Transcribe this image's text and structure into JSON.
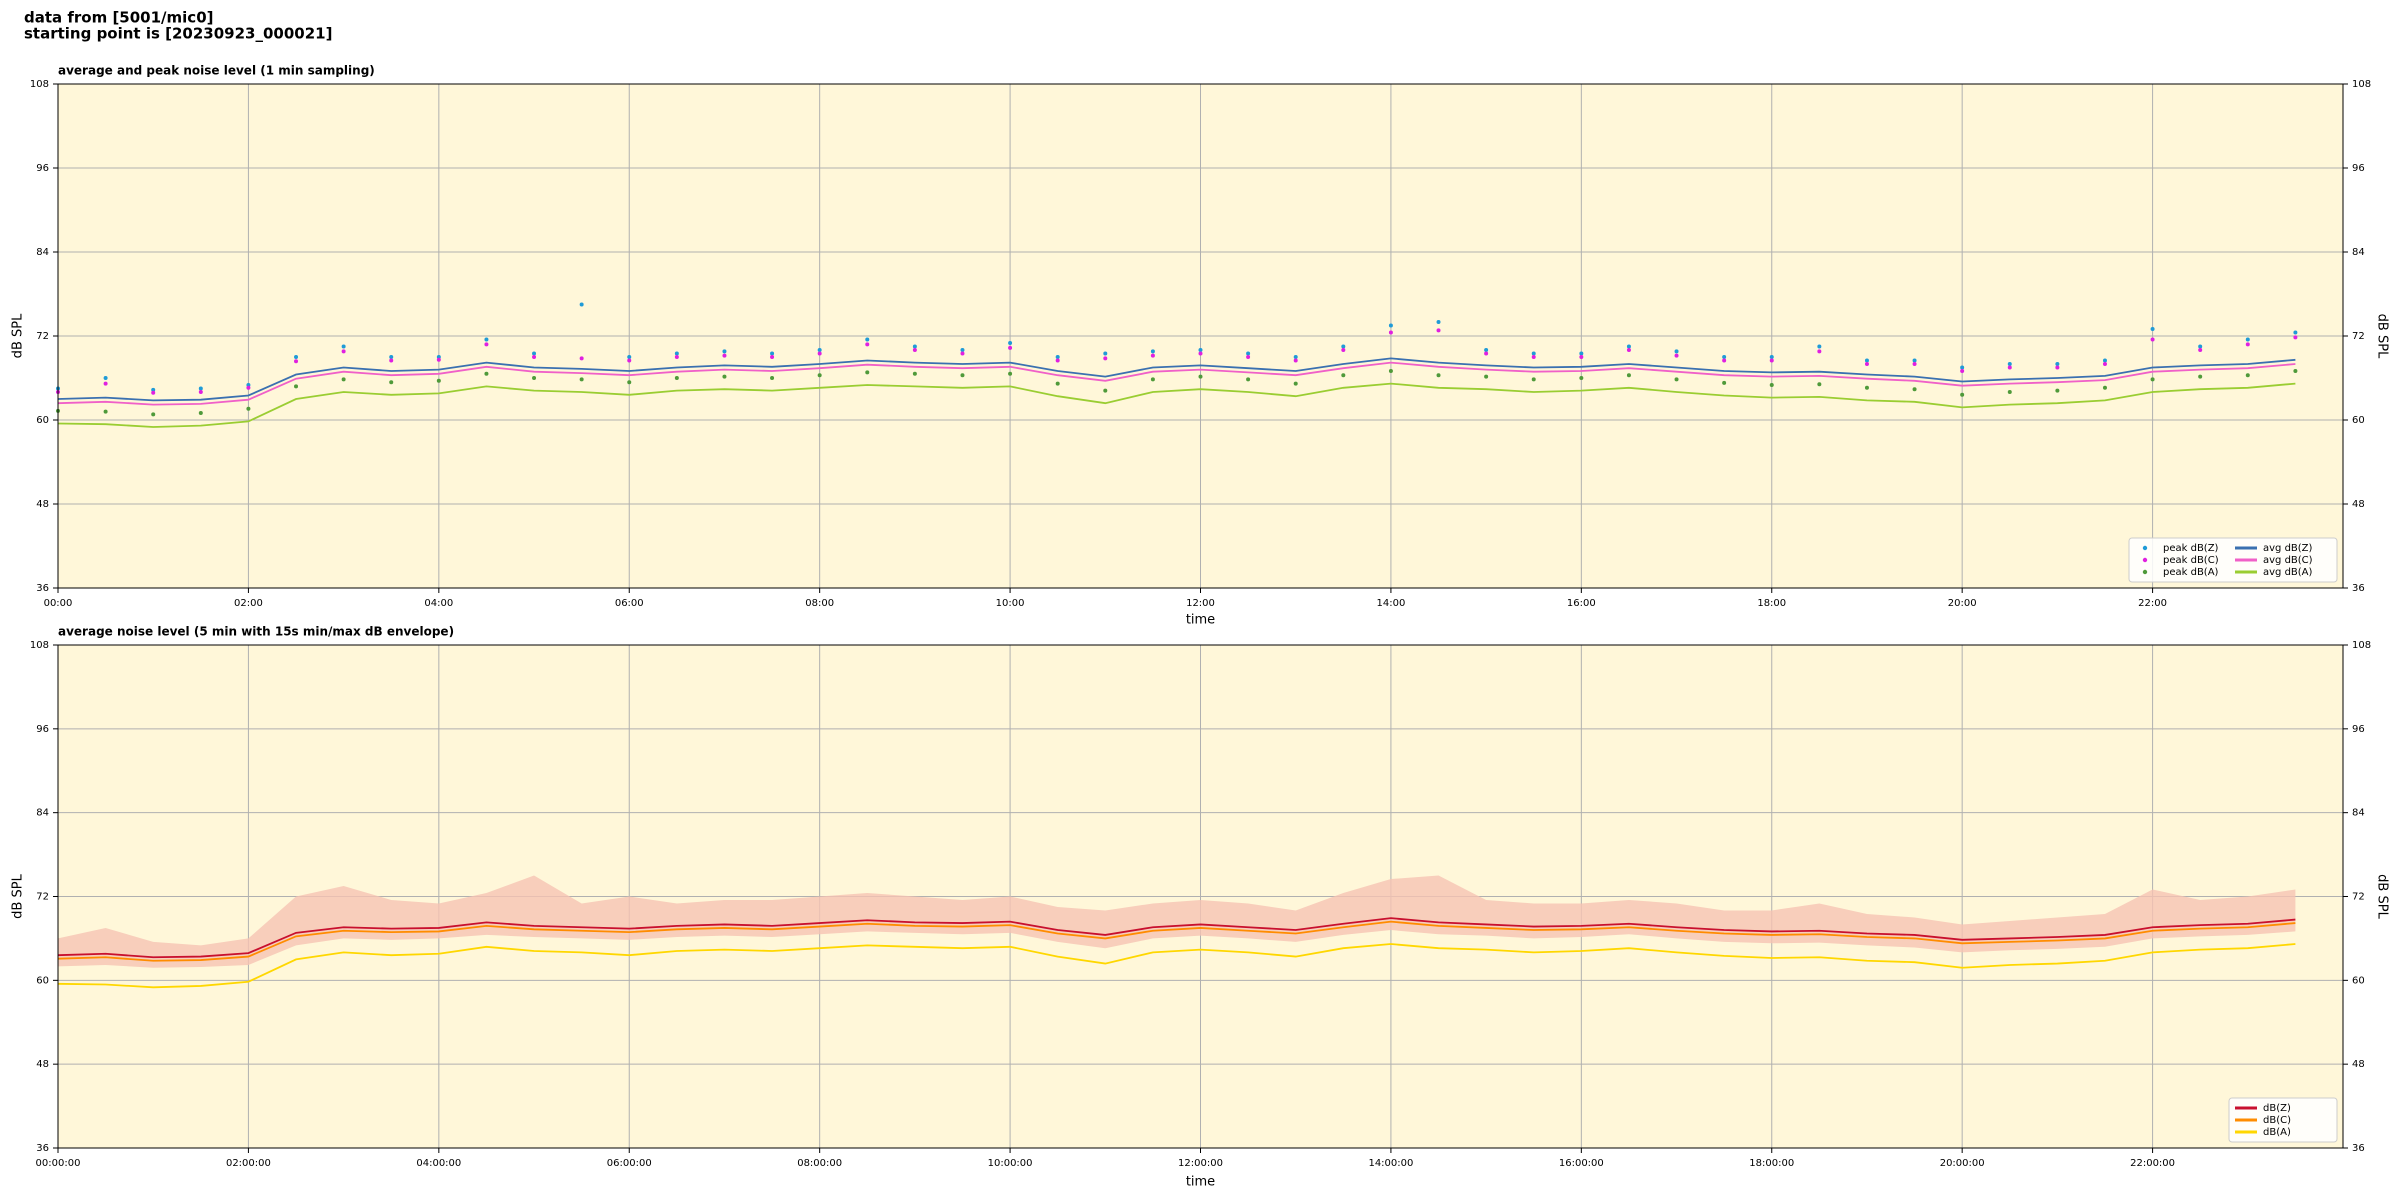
{
  "header": [
    "data from [5001/mic0]",
    "starting point is [20230923_000021]"
  ],
  "chart_data": [
    {
      "type": "line",
      "title": "average and peak noise level (1 min sampling)",
      "x_label": "time",
      "y_label": "dB SPL",
      "background": "#fff7d9",
      "grid": true,
      "legend": "lower right",
      "legend_columns": 2,
      "xlim": [
        0,
        24
      ],
      "ylim": [
        36,
        108
      ],
      "xticks": [
        {
          "value": 0,
          "label": "00:00"
        },
        {
          "value": 2,
          "label": "02:00"
        },
        {
          "value": 4,
          "label": "04:00"
        },
        {
          "value": 6,
          "label": "06:00"
        },
        {
          "value": 8,
          "label": "08:00"
        },
        {
          "value": 10,
          "label": "10:00"
        },
        {
          "value": 12,
          "label": "12:00"
        },
        {
          "value": 14,
          "label": "14:00"
        },
        {
          "value": 16,
          "label": "16:00"
        },
        {
          "value": 18,
          "label": "18:00"
        },
        {
          "value": 20,
          "label": "20:00"
        },
        {
          "value": 22,
          "label": "22:00"
        }
      ],
      "yticks": [
        36,
        48,
        60,
        72,
        84,
        96,
        108
      ],
      "x": [
        0,
        0.5,
        1,
        1.5,
        2,
        2.5,
        3,
        3.5,
        4,
        4.5,
        5,
        5.5,
        6,
        6.5,
        7,
        7.5,
        8,
        8.5,
        9,
        9.5,
        10,
        10.5,
        11,
        11.5,
        12,
        12.5,
        13,
        13.5,
        14,
        14.5,
        15,
        15.5,
        16,
        16.5,
        17,
        17.5,
        18,
        18.5,
        19,
        19.5,
        20,
        20.5,
        21,
        21.5,
        22,
        22.5,
        23,
        23.5
      ],
      "series": [
        {
          "name": "peak dB(Z)",
          "color": "#1f9bd7",
          "style": "points",
          "values": [
            64.5,
            66.0,
            64.3,
            64.5,
            65.0,
            69.0,
            70.5,
            69.0,
            69.0,
            71.5,
            69.5,
            76.5,
            69.0,
            69.5,
            69.8,
            69.5,
            70.0,
            71.5,
            70.5,
            70.0,
            71.0,
            69.0,
            69.5,
            69.8,
            70.0,
            69.5,
            69.0,
            70.5,
            73.5,
            74.0,
            70.0,
            69.5,
            69.5,
            70.5,
            69.8,
            69.0,
            69.0,
            70.5,
            68.5,
            68.5,
            67.5,
            68.0,
            68.0,
            68.5,
            73.0,
            70.5,
            71.5,
            72.5
          ]
        },
        {
          "name": "peak dB(C)",
          "color": "#e020e0",
          "style": "points",
          "values": [
            64.0,
            65.2,
            63.9,
            64.0,
            64.6,
            68.4,
            69.8,
            68.5,
            68.6,
            70.8,
            69.0,
            68.8,
            68.5,
            69.0,
            69.2,
            69.0,
            69.5,
            70.8,
            70.0,
            69.5,
            70.3,
            68.5,
            68.8,
            69.2,
            69.5,
            69.0,
            68.5,
            70.0,
            72.5,
            72.8,
            69.5,
            69.0,
            69.0,
            70.0,
            69.2,
            68.5,
            68.5,
            69.8,
            68.0,
            68.0,
            67.0,
            67.5,
            67.5,
            68.0,
            71.5,
            70.0,
            70.8,
            71.8
          ]
        },
        {
          "name": "peak dB(A)",
          "color": "#4f9a3a",
          "style": "points",
          "values": [
            61.3,
            61.2,
            60.8,
            61.0,
            61.6,
            64.8,
            65.8,
            65.4,
            65.6,
            66.6,
            66.0,
            65.8,
            65.4,
            66.0,
            66.2,
            66.0,
            66.4,
            66.8,
            66.6,
            66.4,
            66.6,
            65.2,
            64.2,
            65.8,
            66.2,
            65.8,
            65.2,
            66.4,
            67.0,
            66.4,
            66.2,
            65.8,
            66.0,
            66.4,
            65.8,
            65.3,
            65.0,
            65.1,
            64.6,
            64.4,
            63.6,
            64.0,
            64.2,
            64.6,
            65.8,
            66.2,
            66.4,
            67.0
          ]
        },
        {
          "name": "avg dB(Z)",
          "color": "#3a70b0",
          "style": "line",
          "values": [
            63.0,
            63.2,
            62.8,
            62.9,
            63.5,
            66.5,
            67.5,
            67.0,
            67.2,
            68.2,
            67.5,
            67.3,
            67.0,
            67.5,
            67.8,
            67.6,
            68.0,
            68.5,
            68.2,
            68.0,
            68.2,
            67.0,
            66.2,
            67.5,
            67.8,
            67.4,
            67.0,
            68.0,
            68.8,
            68.2,
            67.8,
            67.5,
            67.6,
            68.0,
            67.5,
            67.0,
            66.8,
            66.9,
            66.5,
            66.2,
            65.5,
            65.8,
            66.0,
            66.3,
            67.5,
            67.8,
            68.0,
            68.6
          ]
        },
        {
          "name": "avg dB(C)",
          "color": "#f060c8",
          "style": "line",
          "values": [
            62.4,
            62.6,
            62.2,
            62.3,
            62.9,
            65.9,
            66.9,
            66.4,
            66.6,
            67.6,
            66.9,
            66.7,
            66.4,
            66.9,
            67.2,
            67.0,
            67.4,
            67.9,
            67.6,
            67.4,
            67.6,
            66.4,
            65.6,
            66.9,
            67.2,
            66.8,
            66.4,
            67.4,
            68.2,
            67.6,
            67.2,
            66.9,
            67.0,
            67.4,
            66.9,
            66.4,
            66.2,
            66.3,
            65.9,
            65.6,
            64.9,
            65.2,
            65.4,
            65.7,
            66.9,
            67.2,
            67.4,
            68.0
          ]
        },
        {
          "name": "avg dB(A)",
          "color": "#9acd32",
          "style": "line",
          "values": [
            59.5,
            59.4,
            59.0,
            59.2,
            59.8,
            63.0,
            64.0,
            63.6,
            63.8,
            64.8,
            64.2,
            64.0,
            63.6,
            64.2,
            64.4,
            64.2,
            64.6,
            65.0,
            64.8,
            64.6,
            64.8,
            63.4,
            62.4,
            64.0,
            64.4,
            64.0,
            63.4,
            64.6,
            65.2,
            64.6,
            64.4,
            64.0,
            64.2,
            64.6,
            64.0,
            63.5,
            63.2,
            63.3,
            62.8,
            62.6,
            61.8,
            62.2,
            62.4,
            62.8,
            64.0,
            64.4,
            64.6,
            65.2
          ]
        }
      ]
    },
    {
      "type": "line",
      "title": "average noise level (5 min with 15s min/max dB envelope)",
      "x_label": "time",
      "y_label": "dB SPL",
      "background": "#fff7d9",
      "grid": true,
      "legend": "lower right",
      "legend_columns": 1,
      "xlim": [
        0,
        24
      ],
      "ylim": [
        36,
        108
      ],
      "xticks": [
        {
          "value": 0,
          "label": "00:00:00"
        },
        {
          "value": 2,
          "label": "02:00:00"
        },
        {
          "value": 4,
          "label": "04:00:00"
        },
        {
          "value": 6,
          "label": "06:00:00"
        },
        {
          "value": 8,
          "label": "08:00:00"
        },
        {
          "value": 10,
          "label": "10:00:00"
        },
        {
          "value": 12,
          "label": "12:00:00"
        },
        {
          "value": 14,
          "label": "14:00:00"
        },
        {
          "value": 16,
          "label": "16:00:00"
        },
        {
          "value": 18,
          "label": "18:00:00"
        },
        {
          "value": 20,
          "label": "20:00:00"
        },
        {
          "value": 22,
          "label": "22:00:00"
        }
      ],
      "yticks": [
        36,
        48,
        60,
        72,
        84,
        96,
        108
      ],
      "x": [
        0,
        0.5,
        1,
        1.5,
        2,
        2.5,
        3,
        3.5,
        4,
        4.5,
        5,
        5.5,
        6,
        6.5,
        7,
        7.5,
        8,
        8.5,
        9,
        9.5,
        10,
        10.5,
        11,
        11.5,
        12,
        12.5,
        13,
        13.5,
        14,
        14.5,
        15,
        15.5,
        16,
        16.5,
        17,
        17.5,
        18,
        18.5,
        19,
        19.5,
        20,
        20.5,
        21,
        21.5,
        22,
        22.5,
        23,
        23.5
      ],
      "envelope": {
        "color": "#f6c3b3",
        "upper": [
          66.0,
          67.5,
          65.5,
          65.0,
          66.0,
          72.0,
          73.5,
          71.5,
          71.0,
          72.5,
          75.0,
          71.0,
          72.0,
          71.0,
          71.5,
          71.5,
          72.0,
          72.5,
          72.0,
          71.5,
          72.0,
          70.5,
          70.0,
          71.0,
          71.5,
          71.0,
          70.0,
          72.5,
          74.5,
          75.0,
          71.5,
          71.0,
          71.0,
          71.5,
          71.0,
          70.0,
          70.0,
          71.0,
          69.5,
          69.0,
          68.0,
          68.5,
          69.0,
          69.5,
          73.0,
          71.5,
          72.0,
          73.0
        ],
        "lower": [
          62.0,
          62.2,
          61.8,
          61.9,
          62.2,
          65.0,
          66.0,
          65.8,
          66.0,
          66.5,
          66.2,
          66.0,
          65.8,
          66.2,
          66.4,
          66.2,
          66.6,
          67.0,
          66.8,
          66.6,
          66.8,
          65.5,
          64.6,
          66.0,
          66.4,
          66.0,
          65.5,
          66.5,
          67.2,
          66.6,
          66.4,
          66.0,
          66.2,
          66.6,
          66.0,
          65.5,
          65.3,
          65.4,
          65.0,
          64.7,
          64.0,
          64.3,
          64.5,
          64.8,
          66.0,
          66.3,
          66.5,
          67.0
        ]
      },
      "series": [
        {
          "name": "dB(Z)",
          "color": "#c8102e",
          "style": "line",
          "values": [
            63.6,
            63.8,
            63.3,
            63.4,
            63.9,
            66.8,
            67.6,
            67.4,
            67.5,
            68.3,
            67.8,
            67.6,
            67.4,
            67.8,
            68.0,
            67.8,
            68.2,
            68.6,
            68.3,
            68.2,
            68.4,
            67.2,
            66.5,
            67.6,
            68.0,
            67.6,
            67.2,
            68.1,
            68.9,
            68.3,
            68.0,
            67.7,
            67.8,
            68.1,
            67.6,
            67.2,
            67.0,
            67.1,
            66.7,
            66.5,
            65.8,
            66.0,
            66.2,
            66.5,
            67.6,
            67.9,
            68.1,
            68.7
          ]
        },
        {
          "name": "dB(C)",
          "color": "#ff8c00",
          "style": "line",
          "values": [
            63.1,
            63.3,
            62.8,
            62.9,
            63.4,
            66.3,
            67.1,
            66.9,
            67.0,
            67.8,
            67.3,
            67.1,
            66.9,
            67.3,
            67.5,
            67.3,
            67.7,
            68.1,
            67.8,
            67.7,
            67.9,
            66.7,
            66.0,
            67.1,
            67.5,
            67.1,
            66.7,
            67.6,
            68.4,
            67.8,
            67.5,
            67.2,
            67.3,
            67.6,
            67.1,
            66.7,
            66.5,
            66.6,
            66.2,
            66.0,
            65.3,
            65.5,
            65.7,
            66.0,
            67.1,
            67.4,
            67.6,
            68.2
          ]
        },
        {
          "name": "dB(A)",
          "color": "#ffd700",
          "style": "line",
          "values": [
            59.5,
            59.4,
            59.0,
            59.2,
            59.8,
            63.0,
            64.0,
            63.6,
            63.8,
            64.8,
            64.2,
            64.0,
            63.6,
            64.2,
            64.4,
            64.2,
            64.6,
            65.0,
            64.8,
            64.6,
            64.8,
            63.4,
            62.4,
            64.0,
            64.4,
            64.0,
            63.4,
            64.6,
            65.2,
            64.6,
            64.4,
            64.0,
            64.2,
            64.6,
            64.0,
            63.5,
            63.2,
            63.3,
            62.8,
            62.6,
            61.8,
            62.2,
            62.4,
            62.8,
            64.0,
            64.4,
            64.6,
            65.2
          ]
        }
      ]
    }
  ]
}
